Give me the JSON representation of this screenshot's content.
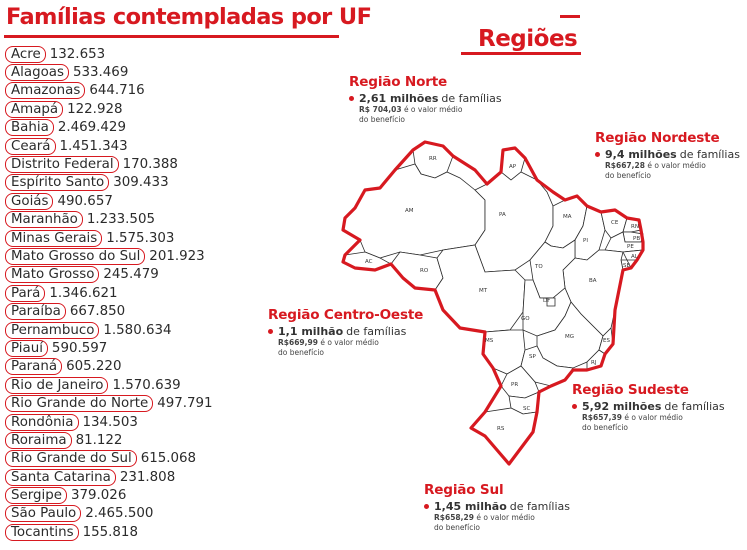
{
  "header": {
    "title": "Famílias contempladas por UF",
    "regions_title": "Regiões"
  },
  "states": [
    {
      "name": "Acre",
      "value": "132.653"
    },
    {
      "name": "Alagoas",
      "value": "533.469"
    },
    {
      "name": "Amazonas",
      "value": "644.716"
    },
    {
      "name": "Amapá",
      "value": "122.928"
    },
    {
      "name": "Bahia",
      "value": "2.469.429"
    },
    {
      "name": "Ceará",
      "value": "1.451.343"
    },
    {
      "name": "Distrito Federal",
      "value": "170.388"
    },
    {
      "name": "Espírito Santo",
      "value": "309.433"
    },
    {
      "name": "Goiás",
      "value": "490.657"
    },
    {
      "name": "Maranhão",
      "value": "1.233.505"
    },
    {
      "name": "Minas Gerais",
      "value": "1.575.303"
    },
    {
      "name": "Mato Grosso do Sul",
      "value": "201.923"
    },
    {
      "name": "Mato Grosso",
      "value": "245.479"
    },
    {
      "name": "Pará",
      "value": "1.346.621"
    },
    {
      "name": "Paraíba",
      "value": "667.850"
    },
    {
      "name": "Pernambuco",
      "value": "1.580.634"
    },
    {
      "name": "Piauí",
      "value": "590.597"
    },
    {
      "name": "Paraná",
      "value": "605.220"
    },
    {
      "name": "Rio de Janeiro",
      "value": "1.570.639"
    },
    {
      "name": "Rio Grande do Norte",
      "value": "497.791"
    },
    {
      "name": "Rondônia",
      "value": "134.503"
    },
    {
      "name": "Roraima",
      "value": "81.122"
    },
    {
      "name": "Rio Grande do Sul",
      "value": "615.068"
    },
    {
      "name": "Santa Catarina",
      "value": "231.808"
    },
    {
      "name": "Sergipe",
      "value": "379.026"
    },
    {
      "name": "São Paulo",
      "value": "2.465.500"
    },
    {
      "name": "Tocantins",
      "value": "155.818"
    }
  ],
  "regions": {
    "norte": {
      "name": "Região Norte",
      "families_bold": "2,61 milhões",
      "families_rest": "de famílias",
      "value_bold": "R$ 704,03",
      "value_rest": "é o valor médio",
      "note_line2": "do benefício"
    },
    "nordeste": {
      "name": "Região Nordeste",
      "families_bold": "9,4 milhões",
      "families_rest": "de famílias",
      "value_bold": "R$667,28",
      "value_rest": "é o valor médio",
      "note_line2": "do benefício"
    },
    "centro_oeste": {
      "name": "Região Centro-Oeste",
      "families_bold": "1,1 milhão",
      "families_rest": "de famílias",
      "value_bold": "R$669,99",
      "value_rest": "é o valor médio",
      "note_line2": "do benefício"
    },
    "sudeste": {
      "name": "Região Sudeste",
      "families_bold": "5,92 milhões",
      "families_rest": "de famílias",
      "value_bold": "R$657,39",
      "value_rest": "é o valor médio",
      "note_line2": "do benefício"
    },
    "sul": {
      "name": "Região Sul",
      "families_bold": "1,45 milhão",
      "families_rest": "de famílias",
      "value_bold": "R$658,29",
      "value_rest": "é o valor médio",
      "note_line2": "do benefício"
    }
  },
  "map": {
    "labels": {
      "RR": "RR",
      "AP": "AP",
      "AM": "AM",
      "PA": "PA",
      "AC": "AC",
      "RO": "RO",
      "MA": "MA",
      "CE": "CE",
      "RN": "RN",
      "PB": "PB",
      "PE": "PE",
      "AL": "AL",
      "SE": "SE",
      "PI": "PI",
      "TO": "TO",
      "BA": "BA",
      "MT": "MT",
      "DF": "DF",
      "GO": "GO",
      "MG": "MG",
      "MS": "MS",
      "SP": "SP",
      "ES": "ES",
      "RJ": "RJ",
      "PR": "PR",
      "SC": "SC",
      "RS": "RS"
    },
    "accent_color": "#d71920"
  }
}
